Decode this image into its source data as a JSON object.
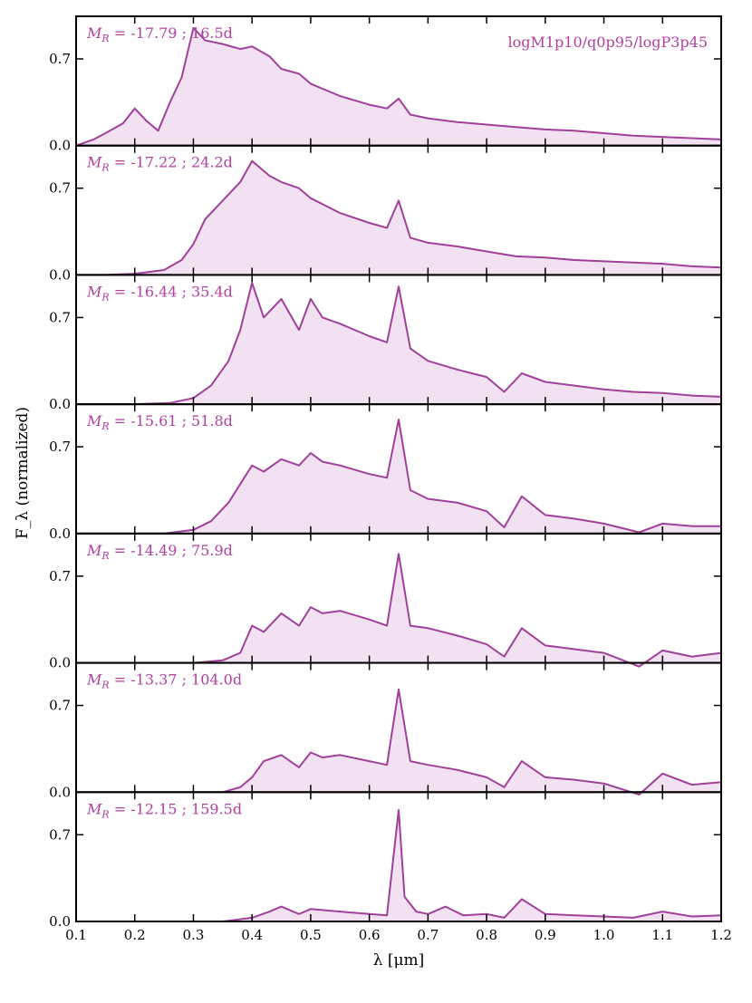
{
  "chart_data": {
    "type": "line",
    "model_label": "logM1p10/q0p95/logP3p45",
    "ylabel": "F_λ (normalized)",
    "xlabel": "λ [μm]",
    "xlim": [
      0.1,
      1.2
    ],
    "ylim": [
      0.0,
      1.0
    ],
    "xticks": [
      "0.1",
      "0.2",
      "0.3",
      "0.4",
      "0.5",
      "0.6",
      "0.7",
      "0.8",
      "0.9",
      "1.0",
      "1.1",
      "1.2"
    ],
    "yticks": [
      "0.0",
      "0.7"
    ],
    "colors": {
      "line": "#a0409a",
      "fill": "#d9aad6",
      "text": "#b040a0"
    },
    "panels": [
      {
        "mag": "-17.79",
        "epoch": "16.5d",
        "x": [
          0.1,
          0.13,
          0.15,
          0.18,
          0.2,
          0.22,
          0.24,
          0.26,
          0.28,
          0.3,
          0.32,
          0.35,
          0.38,
          0.4,
          0.43,
          0.45,
          0.48,
          0.5,
          0.55,
          0.6,
          0.63,
          0.65,
          0.67,
          0.7,
          0.75,
          0.8,
          0.85,
          0.9,
          0.95,
          1.0,
          1.05,
          1.1,
          1.15,
          1.2
        ],
        "y": [
          0.0,
          0.05,
          0.1,
          0.18,
          0.3,
          0.2,
          0.12,
          0.35,
          0.55,
          0.95,
          0.85,
          0.82,
          0.78,
          0.8,
          0.72,
          0.62,
          0.58,
          0.5,
          0.4,
          0.33,
          0.3,
          0.38,
          0.25,
          0.22,
          0.19,
          0.17,
          0.15,
          0.13,
          0.12,
          0.1,
          0.08,
          0.07,
          0.06,
          0.05
        ]
      },
      {
        "mag": "-17.22",
        "epoch": "24.2d",
        "x": [
          0.1,
          0.15,
          0.2,
          0.25,
          0.28,
          0.3,
          0.32,
          0.35,
          0.38,
          0.4,
          0.43,
          0.45,
          0.48,
          0.5,
          0.55,
          0.6,
          0.63,
          0.65,
          0.67,
          0.7,
          0.75,
          0.8,
          0.85,
          0.9,
          0.95,
          1.0,
          1.05,
          1.1,
          1.15,
          1.2
        ],
        "y": [
          0.0,
          0.0,
          0.01,
          0.04,
          0.12,
          0.25,
          0.45,
          0.6,
          0.75,
          0.92,
          0.8,
          0.75,
          0.7,
          0.62,
          0.5,
          0.42,
          0.38,
          0.6,
          0.3,
          0.26,
          0.23,
          0.19,
          0.15,
          0.14,
          0.12,
          0.11,
          0.1,
          0.09,
          0.07,
          0.06
        ]
      },
      {
        "mag": "-16.44",
        "epoch": "35.4d",
        "x": [
          0.1,
          0.2,
          0.26,
          0.3,
          0.33,
          0.36,
          0.38,
          0.4,
          0.42,
          0.45,
          0.48,
          0.5,
          0.52,
          0.55,
          0.6,
          0.63,
          0.65,
          0.67,
          0.7,
          0.75,
          0.8,
          0.83,
          0.86,
          0.9,
          0.95,
          1.0,
          1.05,
          1.1,
          1.15,
          1.2
        ],
        "y": [
          0.0,
          0.0,
          0.01,
          0.05,
          0.15,
          0.35,
          0.6,
          0.98,
          0.7,
          0.85,
          0.6,
          0.85,
          0.7,
          0.65,
          0.55,
          0.5,
          0.95,
          0.45,
          0.35,
          0.28,
          0.22,
          0.1,
          0.25,
          0.18,
          0.15,
          0.12,
          0.1,
          0.09,
          0.07,
          0.06
        ]
      },
      {
        "mag": "-15.61",
        "epoch": "51.8d",
        "x": [
          0.1,
          0.25,
          0.3,
          0.33,
          0.36,
          0.38,
          0.4,
          0.42,
          0.45,
          0.48,
          0.5,
          0.52,
          0.55,
          0.6,
          0.63,
          0.65,
          0.67,
          0.7,
          0.75,
          0.8,
          0.83,
          0.86,
          0.9,
          0.95,
          1.0,
          1.06,
          1.1,
          1.15,
          1.2
        ],
        "y": [
          0.0,
          0.0,
          0.03,
          0.1,
          0.25,
          0.4,
          0.55,
          0.5,
          0.6,
          0.55,
          0.65,
          0.58,
          0.55,
          0.48,
          0.45,
          0.92,
          0.35,
          0.28,
          0.25,
          0.18,
          0.05,
          0.3,
          0.15,
          0.12,
          0.08,
          0.01,
          0.08,
          0.06,
          0.06
        ]
      },
      {
        "mag": "-14.49",
        "epoch": "75.9d",
        "x": [
          0.1,
          0.3,
          0.35,
          0.38,
          0.4,
          0.42,
          0.45,
          0.48,
          0.5,
          0.52,
          0.55,
          0.6,
          0.63,
          0.65,
          0.67,
          0.7,
          0.75,
          0.8,
          0.83,
          0.86,
          0.9,
          0.95,
          1.0,
          1.06,
          1.1,
          1.15,
          1.2
        ],
        "y": [
          0.0,
          0.0,
          0.02,
          0.08,
          0.3,
          0.25,
          0.4,
          0.3,
          0.45,
          0.4,
          0.42,
          0.35,
          0.3,
          0.88,
          0.3,
          0.28,
          0.22,
          0.15,
          0.05,
          0.28,
          0.14,
          0.11,
          0.08,
          -0.03,
          0.1,
          0.05,
          0.08
        ]
      },
      {
        "mag": "-13.37",
        "epoch": "104.0d",
        "x": [
          0.1,
          0.35,
          0.38,
          0.4,
          0.42,
          0.45,
          0.48,
          0.5,
          0.52,
          0.55,
          0.6,
          0.63,
          0.65,
          0.67,
          0.7,
          0.75,
          0.8,
          0.83,
          0.86,
          0.9,
          0.95,
          1.0,
          1.06,
          1.1,
          1.15,
          1.2
        ],
        "y": [
          0.0,
          0.0,
          0.04,
          0.12,
          0.25,
          0.3,
          0.2,
          0.32,
          0.28,
          0.3,
          0.25,
          0.22,
          0.83,
          0.25,
          0.22,
          0.18,
          0.12,
          0.04,
          0.25,
          0.12,
          0.1,
          0.07,
          -0.02,
          0.15,
          0.06,
          0.08
        ]
      },
      {
        "mag": "-12.15",
        "epoch": "159.5d",
        "x": [
          0.1,
          0.35,
          0.4,
          0.43,
          0.45,
          0.48,
          0.5,
          0.55,
          0.6,
          0.63,
          0.65,
          0.66,
          0.68,
          0.7,
          0.73,
          0.76,
          0.8,
          0.83,
          0.86,
          0.9,
          0.95,
          1.0,
          1.05,
          1.1,
          1.15,
          1.2
        ],
        "y": [
          0.0,
          0.0,
          0.03,
          0.08,
          0.12,
          0.06,
          0.1,
          0.08,
          0.06,
          0.05,
          0.9,
          0.2,
          0.08,
          0.06,
          0.12,
          0.05,
          0.06,
          0.03,
          0.18,
          0.06,
          0.05,
          0.04,
          0.03,
          0.08,
          0.04,
          0.05
        ]
      }
    ]
  }
}
